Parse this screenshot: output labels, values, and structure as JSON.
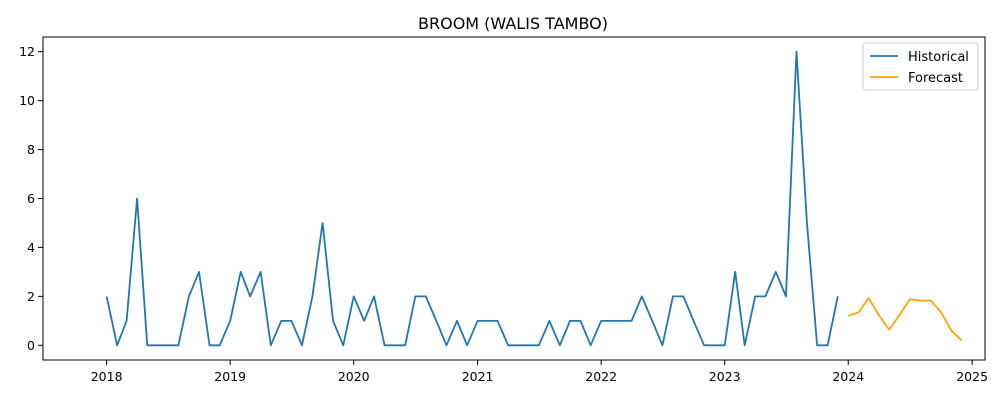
{
  "chart_data": {
    "type": "line",
    "title": "BROOM (WALIS TAMBO)",
    "xlabel": "",
    "ylabel": "",
    "xlim": [
      "2017-06-27",
      "2025-02-08"
    ],
    "ylim": [
      -0.6,
      12.6
    ],
    "x_ticks": [
      "2018",
      "2019",
      "2020",
      "2021",
      "2022",
      "2023",
      "2024",
      "2025"
    ],
    "y_ticks": [
      "0",
      "2",
      "4",
      "6",
      "8",
      "10",
      "12"
    ],
    "legend": {
      "position": "top-right",
      "entries": [
        "Historical",
        "Forecast"
      ]
    },
    "grid": false,
    "series": [
      {
        "name": "Historical",
        "color": "#1f77b4",
        "x": [
          "2018-01",
          "2018-02",
          "2018-03",
          "2018-04",
          "2018-05",
          "2018-06",
          "2018-07",
          "2018-08",
          "2018-09",
          "2018-10",
          "2018-11",
          "2018-12",
          "2019-01",
          "2019-02",
          "2019-03",
          "2019-04",
          "2019-05",
          "2019-06",
          "2019-07",
          "2019-08",
          "2019-09",
          "2019-10",
          "2019-11",
          "2019-12",
          "2020-01",
          "2020-02",
          "2020-03",
          "2020-04",
          "2020-05",
          "2020-06",
          "2020-07",
          "2020-08",
          "2020-09",
          "2020-10",
          "2020-11",
          "2020-12",
          "2021-01",
          "2021-02",
          "2021-03",
          "2021-04",
          "2021-05",
          "2021-06",
          "2021-07",
          "2021-08",
          "2021-09",
          "2021-10",
          "2021-11",
          "2021-12",
          "2022-01",
          "2022-02",
          "2022-03",
          "2022-04",
          "2022-05",
          "2022-06",
          "2022-07",
          "2022-08",
          "2022-09",
          "2022-10",
          "2022-11",
          "2022-12",
          "2023-01",
          "2023-02",
          "2023-03",
          "2023-04",
          "2023-05",
          "2023-06",
          "2023-07",
          "2023-08",
          "2023-09",
          "2023-10",
          "2023-11",
          "2023-12"
        ],
        "values": [
          2,
          0,
          1,
          6,
          0,
          0,
          0,
          0,
          2,
          3,
          0,
          0,
          1,
          3,
          2,
          3,
          0,
          1,
          1,
          0,
          2,
          5,
          1,
          0,
          2,
          1,
          2,
          0,
          0,
          0,
          2,
          2,
          1,
          0,
          1,
          0,
          1,
          1,
          1,
          0,
          0,
          0,
          0,
          1,
          0,
          1,
          1,
          0,
          1,
          1,
          1,
          1,
          2,
          1,
          0,
          2,
          2,
          1,
          0,
          0,
          0,
          3,
          0,
          2,
          2,
          3,
          2,
          12,
          5,
          0,
          0,
          2
        ]
      },
      {
        "name": "Forecast",
        "color": "#ffa500",
        "x": [
          "2024-01",
          "2024-02",
          "2024-03",
          "2024-04",
          "2024-05",
          "2024-06",
          "2024-07",
          "2024-08",
          "2024-09",
          "2024-10",
          "2024-11",
          "2024-12"
        ],
        "values": [
          1.2,
          1.35,
          1.93,
          1.22,
          0.64,
          1.25,
          1.88,
          1.83,
          1.83,
          1.35,
          0.6,
          0.2
        ]
      }
    ]
  }
}
